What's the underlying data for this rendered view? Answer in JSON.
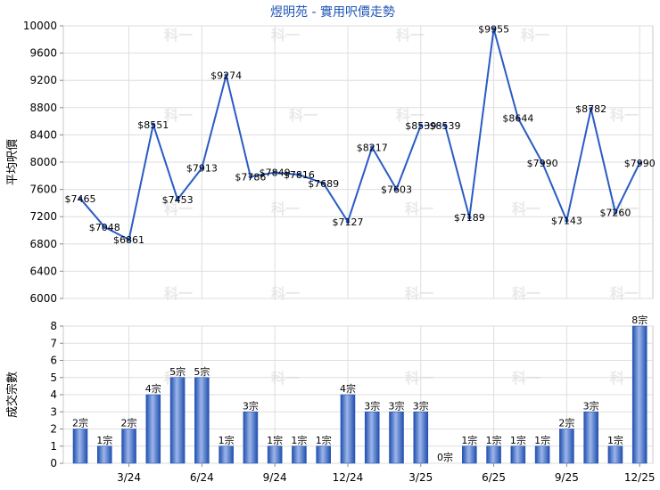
{
  "chart_data": [
    {
      "type": "line",
      "title": "煜明苑 - 實用呎價走勢",
      "ylabel": "平均呎價",
      "ylim": [
        6000,
        10000
      ],
      "yticks": [
        6000,
        6400,
        6800,
        7200,
        7600,
        8000,
        8400,
        8800,
        9200,
        9600,
        10000
      ],
      "x_months": [
        "2024-01",
        "2024-02",
        "2024-03",
        "2024-04",
        "2024-05",
        "2024-06",
        "2024-07",
        "2024-08",
        "2024-09",
        "2024-10",
        "2024-11",
        "2024-12",
        "2025-01",
        "2025-02",
        "2025-03",
        "2025-04",
        "2025-05",
        "2025-06",
        "2025-07",
        "2025-08",
        "2025-09",
        "2025-10",
        "2025-11",
        "2025-12"
      ],
      "values": [
        7465,
        7048,
        6861,
        8551,
        7453,
        7913,
        9274,
        7786,
        7849,
        7816,
        7689,
        7127,
        8217,
        7603,
        8539,
        8539,
        7189,
        9955,
        8644,
        7990,
        7143,
        8782,
        7260,
        7990
      ],
      "labels": [
        "$7465",
        "$7048",
        "$6861",
        "$8551",
        "$7453",
        "$7913",
        "$9274",
        "$7786",
        "$7849",
        "$7816",
        "$7689",
        "$7127",
        "$8217",
        "$7603",
        "$8539",
        "$8539",
        "$7189",
        "$9955",
        "$8644",
        "$7990",
        "$7143",
        "$8782",
        "$7260",
        "$7990"
      ],
      "interpolated_segment": [
        14,
        15
      ],
      "line_color": "#2a5cc4",
      "grid": true
    },
    {
      "type": "bar",
      "ylabel": "成交宗數",
      "ylim": [
        0,
        8
      ],
      "yticks": [
        0,
        1,
        2,
        3,
        4,
        5,
        6,
        7,
        8
      ],
      "x_months": [
        "2024-01",
        "2024-02",
        "2024-03",
        "2024-04",
        "2024-05",
        "2024-06",
        "2024-07",
        "2024-08",
        "2024-09",
        "2024-10",
        "2024-11",
        "2024-12",
        "2025-01",
        "2025-02",
        "2025-03",
        "2025-04",
        "2025-05",
        "2025-06",
        "2025-07",
        "2025-08",
        "2025-09",
        "2025-10",
        "2025-11",
        "2025-12"
      ],
      "values": [
        2,
        1,
        2,
        4,
        5,
        5,
        1,
        3,
        1,
        1,
        1,
        4,
        3,
        3,
        3,
        0,
        1,
        1,
        1,
        1,
        2,
        3,
        1,
        8
      ],
      "labels": [
        "2宗",
        "1宗",
        "2宗",
        "4宗",
        "5宗",
        "5宗",
        "1宗",
        "3宗",
        "1宗",
        "1宗",
        "1宗",
        "4宗",
        "3宗",
        "3宗",
        "3宗",
        "0宗",
        "1宗",
        "1宗",
        "1宗",
        "1宗",
        "2宗",
        "3宗",
        "1宗",
        "8宗"
      ],
      "bar_color": "#3a67c9",
      "grid": true
    }
  ],
  "x_tick_labels": [
    {
      "month_index": 2,
      "label": "3/24"
    },
    {
      "month_index": 5,
      "label": "6/24"
    },
    {
      "month_index": 8,
      "label": "9/24"
    },
    {
      "month_index": 11,
      "label": "12/24"
    },
    {
      "month_index": 14,
      "label": "3/25"
    },
    {
      "month_index": 17,
      "label": "6/25"
    },
    {
      "month_index": 20,
      "label": "9/25"
    },
    {
      "month_index": 23,
      "label": "12/25"
    }
  ],
  "watermark": "科一"
}
